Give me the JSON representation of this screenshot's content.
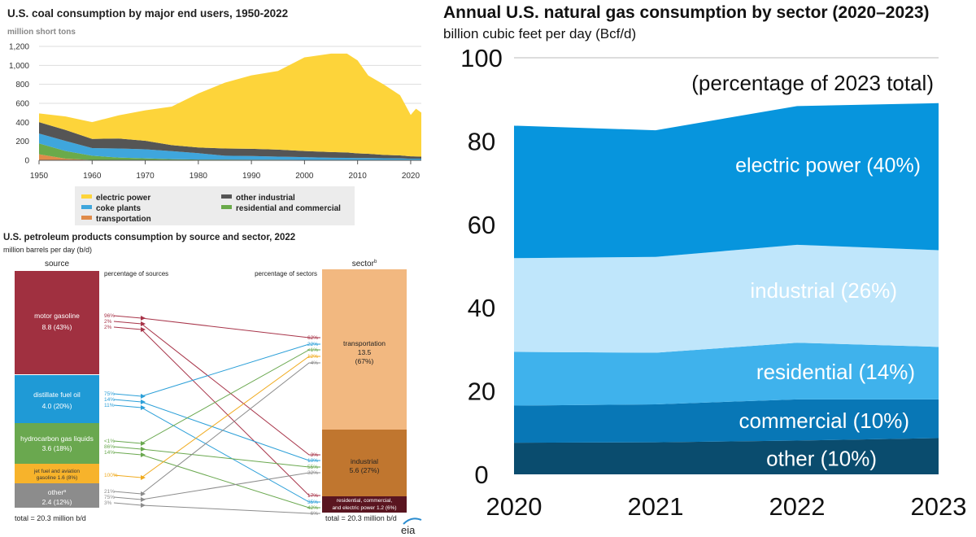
{
  "chart_data": [
    {
      "type": "area",
      "title": "U.S. coal consumption by major end users, 1950-2022",
      "ylabel": "million short tons",
      "ylim": [
        0,
        1200
      ],
      "yticks": [
        "0",
        "200",
        "400",
        "600",
        "800",
        "1,000",
        "1,200"
      ],
      "xticks": [
        "1950",
        "1960",
        "1970",
        "1980",
        "1990",
        "2000",
        "2010",
        "2020"
      ],
      "stacked": true,
      "grid": true,
      "legend_position": "bottom",
      "x": [
        1950,
        1955,
        1960,
        1965,
        1970,
        1975,
        1980,
        1985,
        1990,
        1995,
        2000,
        2005,
        2008,
        2010,
        2012,
        2015,
        2018,
        2020,
        2021,
        2022
      ],
      "series": [
        {
          "name": "transportation",
          "color": "#e08b4a",
          "values": [
            63,
            17,
            3,
            1,
            0,
            0,
            0,
            0,
            0,
            0,
            0,
            0,
            0,
            0,
            0,
            0,
            0,
            0,
            0,
            0
          ]
        },
        {
          "name": "residential and commercial",
          "color": "#6aaa4a",
          "values": [
            115,
            80,
            45,
            28,
            20,
            12,
            8,
            7,
            6,
            6,
            4,
            4,
            4,
            3,
            3,
            2,
            2,
            1,
            1,
            1
          ]
        },
        {
          "name": "coke plants",
          "color": "#3fa6dc",
          "values": [
            104,
            107,
            81,
            95,
            96,
            84,
            67,
            41,
            39,
            33,
            29,
            23,
            22,
            21,
            21,
            19,
            18,
            15,
            16,
            16
          ]
        },
        {
          "name": "other industrial",
          "color": "#555555",
          "values": [
            120,
            115,
            96,
            105,
            90,
            64,
            60,
            76,
            76,
            73,
            65,
            60,
            57,
            49,
            45,
            36,
            31,
            26,
            24,
            22
          ]
        },
        {
          "name": "electric power",
          "color": "#fdd43a",
          "values": [
            92,
            143,
            177,
            245,
            320,
            406,
            569,
            694,
            774,
            829,
            986,
            1037,
            1041,
            979,
            825,
            739,
            635,
            436,
            502,
            464
          ]
        }
      ],
      "legend": [
        "electric power",
        "other industrial",
        "coke plants",
        "residential and commercial",
        "transportation"
      ]
    },
    {
      "type": "table",
      "title": "U.S. petroleum products consumption by source and sector, 2022",
      "subtitle": "million barrels per day (b/d)",
      "source_header": "source",
      "sector_header": "sector",
      "sector_header_note": "b",
      "pct_sources_label": "percentage of sources",
      "pct_sectors_label": "percentage of sectors",
      "sources": [
        {
          "name": "motor gasoline",
          "value": "8.8 (43%)",
          "color": "#a03040",
          "link_color": "#a8354a",
          "shares": [
            "96%",
            "2%",
            "2%"
          ]
        },
        {
          "name": "distillate fuel oil",
          "value": "4.0 (20%)",
          "color": "#1f9ad6",
          "link_color": "#2b9fd8",
          "shares": [
            "75%",
            "14%",
            "11%"
          ]
        },
        {
          "name": "hydrocarbon gas liquids",
          "value": "3.6 (18%)",
          "color": "#6aa84f",
          "link_color": "#6aa84f",
          "shares": [
            "<1%",
            "86%",
            "14%"
          ]
        },
        {
          "name": "jet fuel and aviation gasoline",
          "value": "1.6 (8%)",
          "color": "#f7b32b",
          "link_color": "#f0ab1f",
          "shares": [
            "100%"
          ]
        },
        {
          "name": "other",
          "note": "a",
          "value": "2.4 (12%)",
          "color": "#8c8c8c",
          "link_color": "#8c8c8c",
          "shares": [
            "21%",
            "75%",
            "3%"
          ]
        }
      ],
      "sectors": [
        {
          "name": "transportation",
          "value": "13.5",
          "pct": "(67%)",
          "color": "#f2b880",
          "shares": [
            "62%",
            "22%",
            "<1%",
            "12%",
            "4%"
          ]
        },
        {
          "name": "industrial",
          "value": "5.6 (27%)",
          "color": "#c0762f",
          "shares": [
            "3%",
            "10%",
            "55%",
            "32%"
          ]
        },
        {
          "name": "residential, commercial, and electric power",
          "value": "1.2 (6%)",
          "color": "#5a1520",
          "shares": [
            "17%",
            "35%",
            "42%",
            "6%"
          ]
        }
      ],
      "total_left": "total = 20.3 million b/d",
      "total_right": "total = 20.3 million b/d",
      "brand": "eia"
    },
    {
      "type": "area",
      "title": "Annual U.S. natural gas consumption by sector (2020–2023)",
      "ylabel": "billion cubic feet per day (Bcf/d)",
      "annotation": "(percentage of 2023 total)",
      "ylim": [
        0,
        100
      ],
      "yticks": [
        "0",
        "20",
        "40",
        "60",
        "80",
        "100"
      ],
      "x": [
        "2020",
        "2021",
        "2022",
        "2023"
      ],
      "stacked": true,
      "series": [
        {
          "name": "other",
          "label": "other (10%)",
          "color": "#0a4c6e",
          "values": [
            7.6,
            7.7,
            8.1,
            8.7
          ]
        },
        {
          "name": "commercial",
          "label": "commercial (10%)",
          "color": "#0877b6",
          "values": [
            8.9,
            9.1,
            9.9,
            9.3
          ]
        },
        {
          "name": "residential",
          "label": "residential (14%)",
          "color": "#3fb2ec",
          "values": [
            12.9,
            12.4,
            13.6,
            12.6
          ]
        },
        {
          "name": "industrial",
          "label": "industrial (26%)",
          "color": "#bfe6fb",
          "values": [
            22.5,
            23.0,
            23.5,
            23.2
          ]
        },
        {
          "name": "electric power",
          "label": "electric power (40%)",
          "color": "#0795dd",
          "values": [
            31.8,
            30.4,
            33.3,
            35.3
          ]
        }
      ]
    }
  ]
}
